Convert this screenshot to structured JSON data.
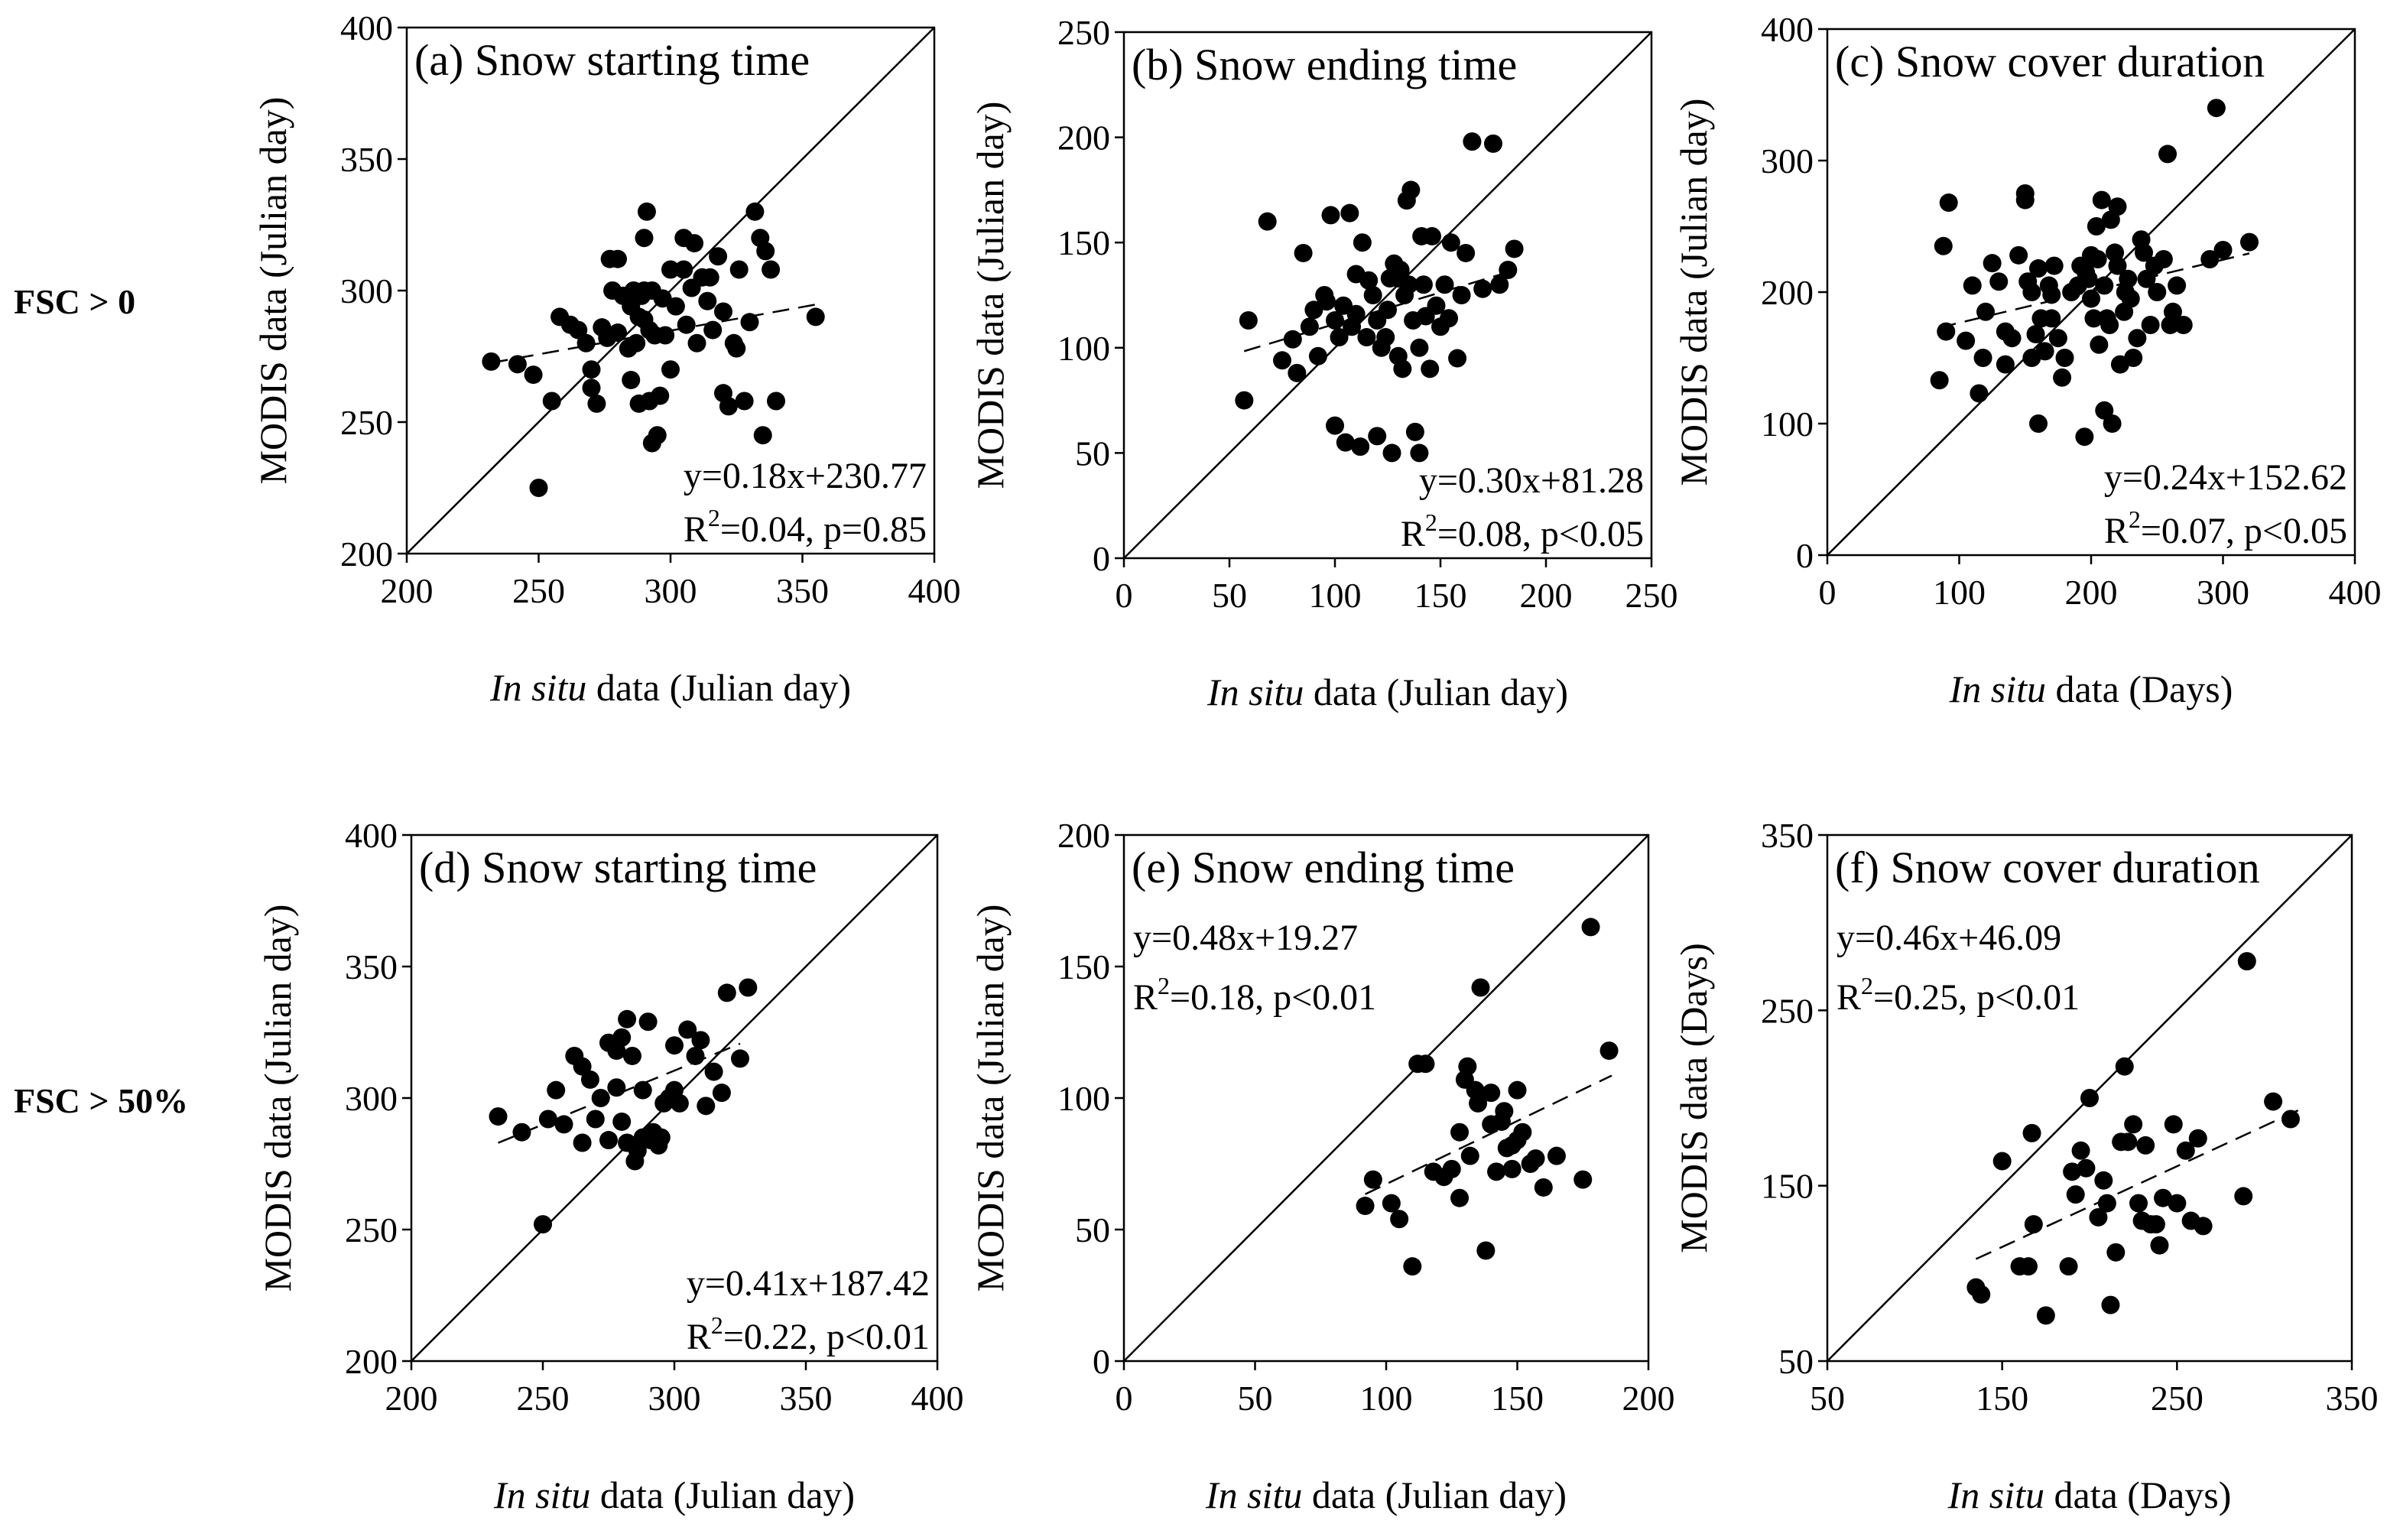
{
  "figure": {
    "row_labels": [
      "FSC > 0",
      "FSC > 50%"
    ],
    "colors": {
      "points": "#000000",
      "axes": "#000000",
      "background": "#ffffff"
    }
  },
  "chart_data": [
    {
      "type": "scatter",
      "title": "(a) Snow starting time",
      "xlabel_italic": "In situ",
      "xlabel_rest": " data (Julian day)",
      "ylabel": "MODIS data (Julian day)",
      "xlim": [
        200,
        400
      ],
      "ylim": [
        200,
        400
      ],
      "xticks": [
        200,
        250,
        300,
        350,
        400
      ],
      "yticks": [
        200,
        250,
        300,
        350,
        400
      ],
      "one_to_one_line": true,
      "regression": {
        "slope": 0.18,
        "intercept": 230.77,
        "x_range": [
          232,
          355
        ]
      },
      "equation": "y=0.18x+230.77",
      "r2_label": "R",
      "r2_sup": "2",
      "r2_text": "=0.04, p=0.85",
      "annotation_position": "bottom-right",
      "x": [
        232,
        242,
        248,
        250,
        255,
        258,
        262,
        265,
        268,
        270,
        270,
        272,
        274,
        276,
        277,
        278,
        280,
        280,
        282,
        284,
        285,
        285,
        286,
        287,
        288,
        288,
        289,
        290,
        290,
        290,
        291,
        292,
        292,
        293,
        293,
        294,
        295,
        296,
        297,
        298,
        300,
        300,
        302,
        305,
        305,
        306,
        308,
        309,
        310,
        312,
        314,
        315,
        316,
        318,
        320,
        320,
        322,
        324,
        325,
        326,
        328,
        330,
        332,
        334,
        335,
        336,
        338,
        340,
        355
      ],
      "y": [
        273,
        272,
        268,
        225,
        258,
        290,
        287,
        285,
        280,
        270,
        263,
        257,
        286,
        282,
        312,
        300,
        284,
        312,
        298,
        278,
        294,
        266,
        300,
        280,
        290,
        257,
        298,
        320,
        300,
        289,
        330,
        285,
        258,
        242,
        300,
        283,
        245,
        260,
        297,
        283,
        270,
        308,
        294,
        320,
        308,
        287,
        301,
        318,
        280,
        305,
        296,
        305,
        285,
        313,
        292,
        261,
        256,
        280,
        278,
        308,
        258,
        288,
        330,
        320,
        245,
        315,
        308,
        258,
        290
      ]
    },
    {
      "type": "scatter",
      "title": "(b) Snow ending time",
      "xlabel_italic": "In situ",
      "xlabel_rest": " data (Julian day)",
      "ylabel": "MODIS data (Julian day)",
      "xlim": [
        0,
        250
      ],
      "ylim": [
        0,
        250
      ],
      "xticks": [
        0,
        50,
        100,
        150,
        200,
        250
      ],
      "yticks": [
        0,
        50,
        100,
        150,
        200,
        250
      ],
      "one_to_one_line": true,
      "regression": {
        "slope": 0.3,
        "intercept": 81.28,
        "x_range": [
          57,
          186
        ]
      },
      "equation": "y=0.30x+81.28",
      "r2_label": "R",
      "r2_sup": "2",
      "r2_text": "=0.08, p<0.05",
      "annotation_position": "bottom-right",
      "x": [
        57,
        59,
        68,
        75,
        80,
        82,
        85,
        88,
        90,
        92,
        95,
        96,
        98,
        100,
        100,
        102,
        104,
        105,
        107,
        108,
        110,
        110,
        112,
        113,
        115,
        116,
        118,
        120,
        120,
        122,
        124,
        125,
        126,
        127,
        128,
        130,
        130,
        131,
        132,
        133,
        134,
        135,
        136,
        137,
        138,
        140,
        140,
        141,
        142,
        143,
        145,
        146,
        148,
        150,
        152,
        154,
        155,
        158,
        160,
        162,
        165,
        170,
        175,
        178,
        182,
        185
      ],
      "y": [
        75,
        113,
        160,
        94,
        104,
        88,
        145,
        110,
        118,
        96,
        125,
        122,
        163,
        113,
        63,
        105,
        120,
        55,
        164,
        110,
        116,
        135,
        53,
        150,
        105,
        132,
        125,
        58,
        113,
        100,
        105,
        118,
        133,
        50,
        140,
        133,
        96,
        137,
        90,
        125,
        170,
        130,
        175,
        113,
        60,
        100,
        50,
        153,
        130,
        115,
        90,
        153,
        120,
        110,
        130,
        114,
        150,
        95,
        125,
        145,
        198,
        128,
        197,
        130,
        137,
        147
      ]
    },
    {
      "type": "scatter",
      "title": "(c) Snow cover duration",
      "xlabel_italic": "In situ",
      "xlabel_rest": " data (Days)",
      "ylabel": "MODIS data (Julian day)",
      "xlim": [
        0,
        400
      ],
      "ylim": [
        0,
        400
      ],
      "xticks": [
        0,
        100,
        200,
        300,
        400
      ],
      "yticks": [
        0,
        100,
        200,
        300,
        400
      ],
      "one_to_one_line": true,
      "regression": {
        "slope": 0.24,
        "intercept": 152.62,
        "x_range": [
          85,
          320
        ]
      },
      "equation": "y=0.24x+152.62",
      "r2_label": "R",
      "r2_sup": "2",
      "r2_text": "=0.07, p<0.05",
      "annotation_position": "bottom-right",
      "x": [
        85,
        88,
        90,
        92,
        105,
        110,
        115,
        118,
        120,
        125,
        130,
        135,
        135,
        140,
        145,
        150,
        150,
        152,
        155,
        155,
        158,
        160,
        160,
        162,
        165,
        168,
        170,
        170,
        172,
        175,
        178,
        180,
        185,
        190,
        192,
        195,
        196,
        198,
        200,
        200,
        202,
        204,
        205,
        206,
        208,
        210,
        210,
        212,
        214,
        215,
        216,
        218,
        220,
        220,
        222,
        225,
        226,
        228,
        230,
        232,
        235,
        238,
        240,
        242,
        245,
        248,
        250,
        255,
        258,
        260,
        262,
        265,
        270,
        290,
        295,
        300,
        320
      ],
      "y": [
        133,
        235,
        170,
        268,
        163,
        205,
        123,
        150,
        185,
        222,
        208,
        145,
        170,
        165,
        228,
        270,
        275,
        208,
        150,
        200,
        168,
        100,
        218,
        180,
        155,
        205,
        198,
        180,
        220,
        165,
        135,
        150,
        200,
        205,
        220,
        90,
        215,
        210,
        228,
        195,
        180,
        250,
        225,
        160,
        270,
        205,
        110,
        180,
        175,
        255,
        100,
        230,
        220,
        265,
        145,
        185,
        200,
        210,
        195,
        150,
        165,
        240,
        230,
        210,
        175,
        220,
        200,
        225,
        305,
        175,
        185,
        205,
        175,
        225,
        340,
        232,
        238
      ]
    },
    {
      "type": "scatter",
      "title": "(d) Snow starting time",
      "xlabel_italic": "In situ",
      "xlabel_rest": " data (Julian day)",
      "ylabel": "MODIS data (Julian day)",
      "xlim": [
        200,
        400
      ],
      "ylim": [
        200,
        400
      ],
      "xticks": [
        200,
        250,
        300,
        350,
        400
      ],
      "yticks": [
        200,
        250,
        300,
        350,
        400
      ],
      "one_to_one_line": true,
      "regression": {
        "slope": 0.41,
        "intercept": 187.42,
        "x_range": [
          233,
          325
        ]
      },
      "equation": "y=0.41x+187.42",
      "r2_label": "R",
      "r2_sup": "2",
      "r2_text": "=0.22, p<0.01",
      "annotation_position": "bottom-right",
      "x": [
        233,
        242,
        250,
        252,
        255,
        258,
        262,
        265,
        265,
        268,
        270,
        272,
        275,
        275,
        278,
        278,
        280,
        280,
        282,
        282,
        284,
        285,
        286,
        288,
        288,
        290,
        291,
        292,
        294,
        295,
        296,
        298,
        300,
        300,
        302,
        305,
        308,
        310,
        312,
        315,
        318,
        320,
        325,
        328
      ],
      "y": [
        293,
        287,
        252,
        292,
        303,
        290,
        316,
        283,
        312,
        307,
        292,
        300,
        321,
        284,
        318,
        304,
        323,
        291,
        330,
        283,
        316,
        276,
        280,
        303,
        285,
        329,
        284,
        287,
        282,
        285,
        298,
        300,
        320,
        303,
        298,
        326,
        316,
        322,
        297,
        310,
        302,
        340,
        315,
        342
      ]
    },
    {
      "type": "scatter",
      "title": "(e) Snow ending time",
      "xlabel_italic": "In situ",
      "xlabel_rest": " data (Julian day)",
      "ylabel": "MODIS data (Julian day)",
      "xlim": [
        0,
        200
      ],
      "ylim": [
        0,
        200
      ],
      "xticks": [
        0,
        50,
        100,
        150,
        200
      ],
      "yticks": [
        0,
        50,
        100,
        150,
        200
      ],
      "one_to_one_line": true,
      "regression": {
        "slope": 0.48,
        "intercept": 19.27,
        "x_range": [
          92,
          186
        ]
      },
      "equation": "y=0.48x+19.27",
      "r2_label": "R",
      "r2_sup": "2",
      "r2_text": "=0.18, p<0.01",
      "annotation_position": "top-left",
      "x": [
        92,
        95,
        102,
        105,
        110,
        112,
        115,
        118,
        122,
        125,
        128,
        128,
        130,
        131,
        132,
        134,
        135,
        136,
        138,
        140,
        140,
        142,
        144,
        145,
        146,
        148,
        148,
        150,
        150,
        152,
        155,
        157,
        160,
        165,
        175,
        178,
        185
      ],
      "y": [
        59,
        69,
        60,
        54,
        36,
        113,
        113,
        72,
        70,
        73,
        62,
        87,
        107,
        112,
        78,
        103,
        98,
        142,
        42,
        90,
        102,
        72,
        91,
        95,
        81,
        73,
        82,
        103,
        84,
        87,
        75,
        77,
        66,
        78,
        69,
        165,
        118
      ]
    },
    {
      "type": "scatter",
      "title": "(f) Snow cover duration",
      "xlabel_italic": "In situ",
      "xlabel_rest": " data (Days)",
      "ylabel": "MODIS data (Days)",
      "xlim": [
        50,
        350
      ],
      "ylim": [
        50,
        350
      ],
      "xticks": [
        50,
        150,
        250,
        350
      ],
      "yticks": [
        50,
        150,
        250,
        350
      ],
      "one_to_one_line": true,
      "regression": {
        "slope": 0.46,
        "intercept": 46.09,
        "x_range": [
          135,
          320
        ]
      },
      "equation": "y=0.46x+46.09",
      "r2_label": "R",
      "r2_sup": "2",
      "r2_text": "=0.25, p<0.01",
      "annotation_position": "top-left",
      "x": [
        135,
        138,
        150,
        160,
        165,
        167,
        168,
        175,
        188,
        190,
        192,
        195,
        198,
        200,
        205,
        208,
        210,
        212,
        215,
        218,
        220,
        222,
        225,
        228,
        230,
        232,
        235,
        238,
        240,
        242,
        248,
        250,
        255,
        258,
        262,
        265,
        288,
        290,
        305,
        315
      ],
      "y": [
        92,
        88,
        164,
        104,
        104,
        180,
        128,
        76,
        104,
        158,
        145,
        170,
        160,
        200,
        132,
        153,
        140,
        82,
        112,
        175,
        218,
        175,
        185,
        140,
        130,
        173,
        128,
        128,
        116,
        143,
        185,
        140,
        170,
        130,
        177,
        127,
        144,
        278,
        198,
        188
      ]
    }
  ]
}
